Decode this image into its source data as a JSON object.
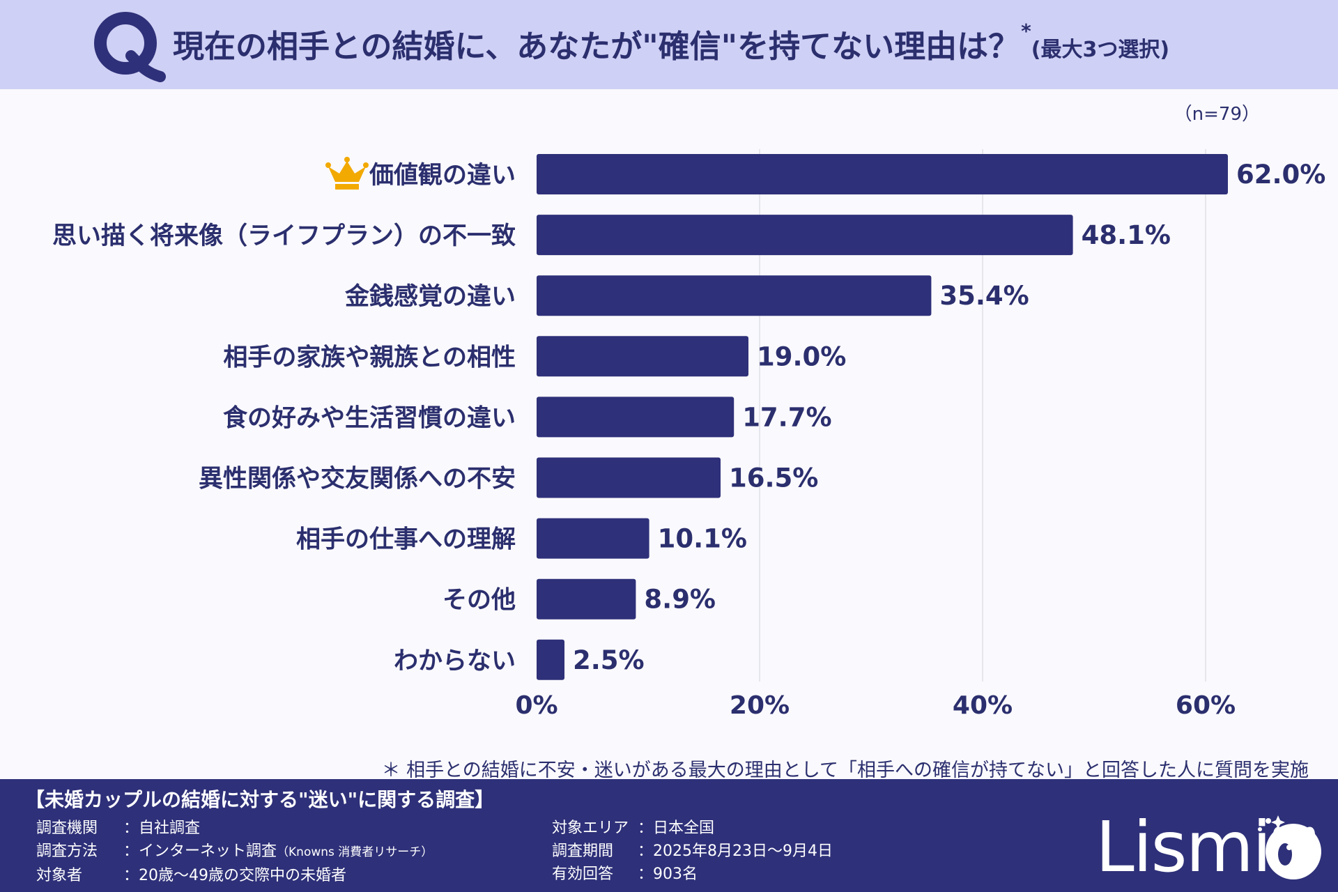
{
  "header": {
    "q_letter": "Q",
    "title": "現在の相手との結婚に、あなたが\"確信\"を持てない理由は？",
    "title_mark": "*",
    "title_sub": "(最大3つ選択)"
  },
  "sample_size": "（n=79）",
  "chart_data": {
    "type": "bar",
    "orientation": "horizontal",
    "categories": [
      "価値観の違い",
      "思い描く将来像（ライフプラン）の不一致",
      "金銭感覚の違い",
      "相手の家族や親族との相性",
      "食の好みや生活習慣の違い",
      "異性関係や交友関係への不安",
      "相手の仕事への理解",
      "その他",
      "わからない"
    ],
    "values": [
      62.0,
      48.1,
      35.4,
      19.0,
      17.7,
      16.5,
      10.1,
      8.9,
      2.5
    ],
    "value_labels": [
      "62.0%",
      "48.1%",
      "35.4%",
      "19.0%",
      "17.7%",
      "16.5%",
      "10.1%",
      "8.9%",
      "2.5%"
    ],
    "xlim": [
      0,
      70
    ],
    "xticks": [
      0,
      20,
      40,
      60
    ],
    "xtick_labels": [
      "0%",
      "20%",
      "40%",
      "60%"
    ],
    "grid": true,
    "top_marker": "crown",
    "bar_color": "#2e3079",
    "grid_color": "#e0e0e8"
  },
  "footnote": "＊ 相手との結婚に不安・迷いがある最大の理由として「相手への確信が持てない」と回答した人に質問を実施",
  "footer": {
    "survey_title": "【未婚カップルの結婚に対する\"迷い\"に関する調査】",
    "left": [
      {
        "label": "調査機関",
        "value": "：自社調査",
        "note": ""
      },
      {
        "label": "調査方法",
        "value": "：インターネット調査",
        "note": "（Knowns 消費者リサーチ）"
      },
      {
        "label": "対象者",
        "value": "：20歳〜49歳の交際中の未婚者",
        "note": ""
      }
    ],
    "right": [
      {
        "label": "対象エリア",
        "value": "：日本全国"
      },
      {
        "label": "調査期間",
        "value": "：2025年8月23日〜9月4日"
      },
      {
        "label": "有効回答",
        "value": "：903名"
      }
    ],
    "brand": "Lismi"
  },
  "colors": {
    "header_bg": "#cfd0f5",
    "accent": "#2b2f6e",
    "footer_bg": "#2e3079",
    "crown": "#f2a900"
  }
}
